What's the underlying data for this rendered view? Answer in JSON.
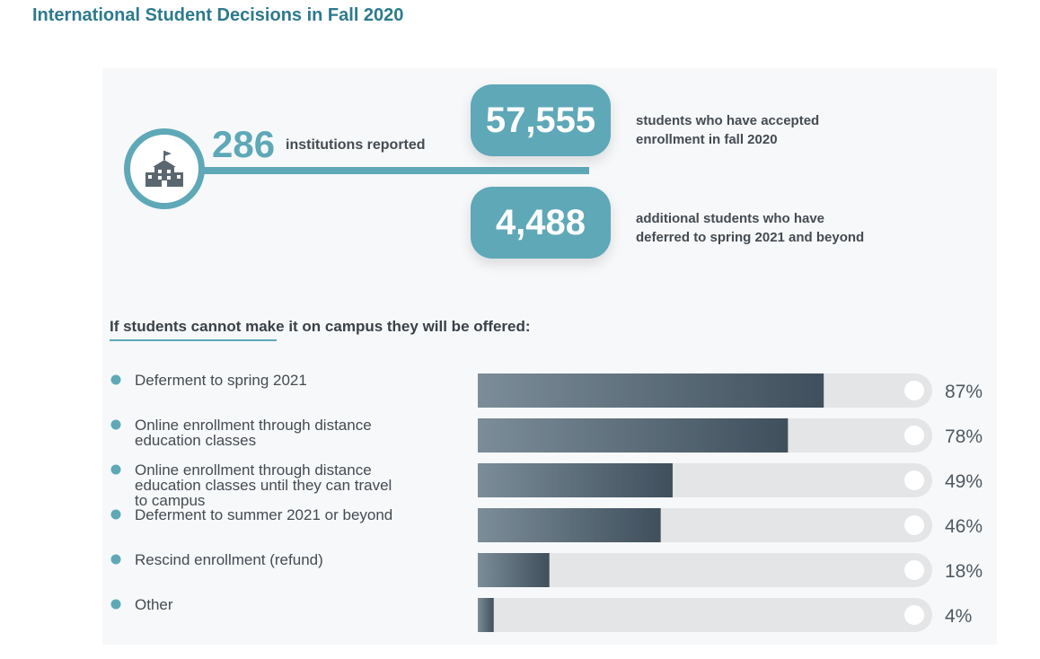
{
  "title": "International Student Decisions in Fall 2020",
  "institutions": {
    "number": "286",
    "label": "institutions reported"
  },
  "stats": [
    {
      "value": "57,555",
      "label_line1": "students who have accepted",
      "label_line2": "enrollment in fall 2020"
    },
    {
      "value": "4,488",
      "label_line1": "additional students who have",
      "label_line2": "deferred to spring 2021 and beyond"
    }
  ],
  "subtitle": "If students cannot make it on campus they will be offered:",
  "colors": {
    "accent": "#5ea8b8",
    "bar_dark": "#3f4f5c",
    "bar_light": "#7c8d99",
    "track": "#e3e5e7",
    "text": "#444b52",
    "title": "#2d7a8c"
  },
  "chart_data": {
    "type": "bar",
    "orientation": "horizontal",
    "title": "If students cannot make it on campus they will be offered:",
    "categories": [
      [
        "Deferment to spring 2021"
      ],
      [
        "Online enrollment through distance",
        "education classes"
      ],
      [
        "Online enrollment through distance",
        "education classes until they can travel",
        "to campus"
      ],
      [
        "Deferment to summer 2021 or beyond"
      ],
      [
        "Rescind enrollment (refund)"
      ],
      [
        "Other"
      ]
    ],
    "values": [
      87,
      78,
      49,
      46,
      18,
      4
    ],
    "value_labels": [
      "87%",
      "78%",
      "49%",
      "46%",
      "18%",
      "4%"
    ],
    "xlim": [
      0,
      100
    ],
    "unit": "%"
  }
}
